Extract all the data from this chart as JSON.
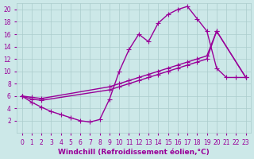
{
  "bg_color": "#cce8e8",
  "grid_color": "#aacccc",
  "line_color": "#990099",
  "marker": "+",
  "markersize": 4,
  "linewidth": 1.0,
  "xlabel": "Windchill (Refroidissement éolien,°C)",
  "xlabel_fontsize": 6.5,
  "xlim": [
    -0.5,
    23.5
  ],
  "ylim": [
    0,
    21
  ],
  "xticks": [
    0,
    1,
    2,
    3,
    4,
    5,
    6,
    7,
    8,
    9,
    10,
    11,
    12,
    13,
    14,
    15,
    16,
    17,
    18,
    19,
    20,
    21,
    22,
    23
  ],
  "yticks": [
    2,
    4,
    6,
    8,
    10,
    12,
    14,
    16,
    18,
    20
  ],
  "tick_fontsize": 5.5,
  "line1_x": [
    0,
    1,
    2,
    3,
    4,
    5,
    6,
    7,
    8,
    9,
    10,
    11,
    12,
    13,
    14,
    15,
    16,
    17,
    18,
    19,
    20,
    21,
    22,
    23
  ],
  "line1_y": [
    6.0,
    5.0,
    4.2,
    3.5,
    3.0,
    2.5,
    2.0,
    1.8,
    2.2,
    5.5,
    10.0,
    13.5,
    16.0,
    14.8,
    17.8,
    19.2,
    20.0,
    20.5,
    18.5,
    16.5,
    10.5,
    9.0,
    9.0,
    9.0
  ],
  "line2_x": [
    0,
    1,
    2,
    9,
    10,
    11,
    12,
    13,
    14,
    15,
    16,
    17,
    18,
    19,
    20,
    23
  ],
  "line2_y": [
    6.0,
    5.8,
    5.6,
    7.5,
    8.0,
    8.5,
    9.0,
    9.5,
    10.0,
    10.5,
    11.0,
    11.5,
    12.0,
    12.5,
    16.5,
    9.0
  ],
  "line3_x": [
    0,
    1,
    2,
    9,
    10,
    11,
    12,
    13,
    14,
    15,
    16,
    17,
    18,
    19,
    20,
    23
  ],
  "line3_y": [
    6.0,
    5.5,
    5.3,
    7.0,
    7.5,
    8.0,
    8.5,
    9.0,
    9.5,
    10.0,
    10.5,
    11.0,
    11.5,
    12.0,
    16.5,
    9.0
  ]
}
